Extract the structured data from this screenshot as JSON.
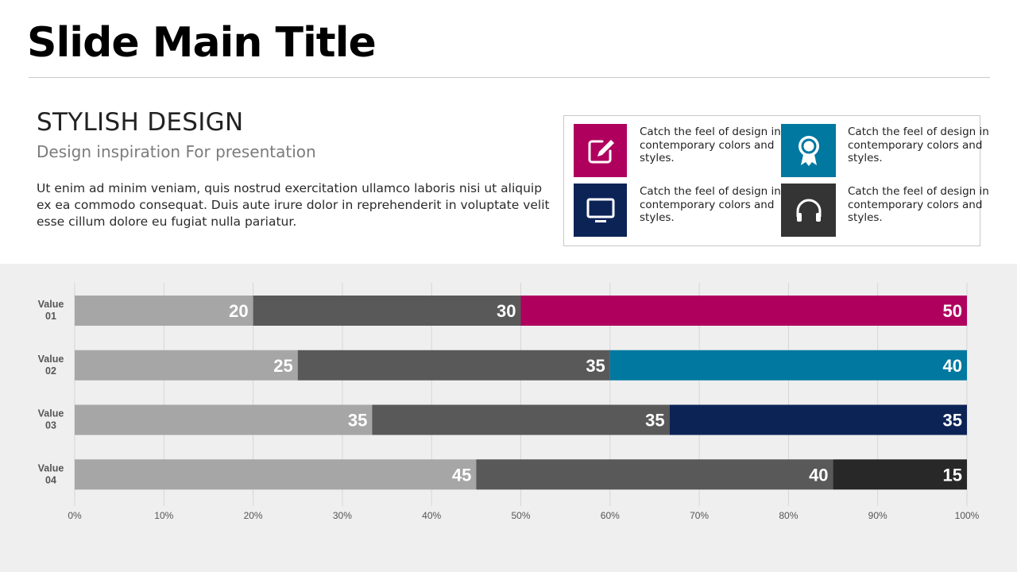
{
  "slide": {
    "title": "Slide Main Title",
    "heading": "STYLISH DESIGN",
    "subheading": "Design inspiration For presentation",
    "body": "Ut enim ad minim veniam, quis nostrud exercitation ullamco laboris nisi ut aliquip ex ea commodo consequat. Duis aute irure dolor in reprehenderit in voluptate velit esse cillum dolore eu fugiat nulla pariatur."
  },
  "features": [
    {
      "text": "Catch the feel of design in contemporary colors and styles.",
      "icon": "edit-icon",
      "color": "#b0005e"
    },
    {
      "text": "Catch the feel of design in contemporary colors and styles.",
      "icon": "award-icon",
      "color": "#0078a0"
    },
    {
      "text": "Catch the feel of design in contemporary colors and styles.",
      "icon": "monitor-icon",
      "color": "#0c2356"
    },
    {
      "text": "Catch the feel of design in contemporary colors and styles.",
      "icon": "headphones-icon",
      "color": "#343434"
    }
  ],
  "chart_data": {
    "type": "bar",
    "orientation": "horizontal",
    "stacked": "percent",
    "categories": [
      "Value 01",
      "Value 02",
      "Value 03",
      "Value 04"
    ],
    "series": [
      {
        "values": [
          20,
          25,
          35,
          45
        ],
        "color": "#a6a6a6"
      },
      {
        "values": [
          30,
          35,
          35,
          40
        ],
        "color": "#595959"
      },
      {
        "values": [
          50,
          40,
          35,
          15
        ],
        "colors": [
          "#b0005e",
          "#0078a0",
          "#0c2356",
          "#282828"
        ]
      }
    ],
    "x_ticks": [
      "0%",
      "10%",
      "20%",
      "30%",
      "40%",
      "50%",
      "60%",
      "70%",
      "80%",
      "90%",
      "100%"
    ],
    "xlim": [
      0,
      100
    ],
    "grid": true,
    "legend": "none"
  }
}
